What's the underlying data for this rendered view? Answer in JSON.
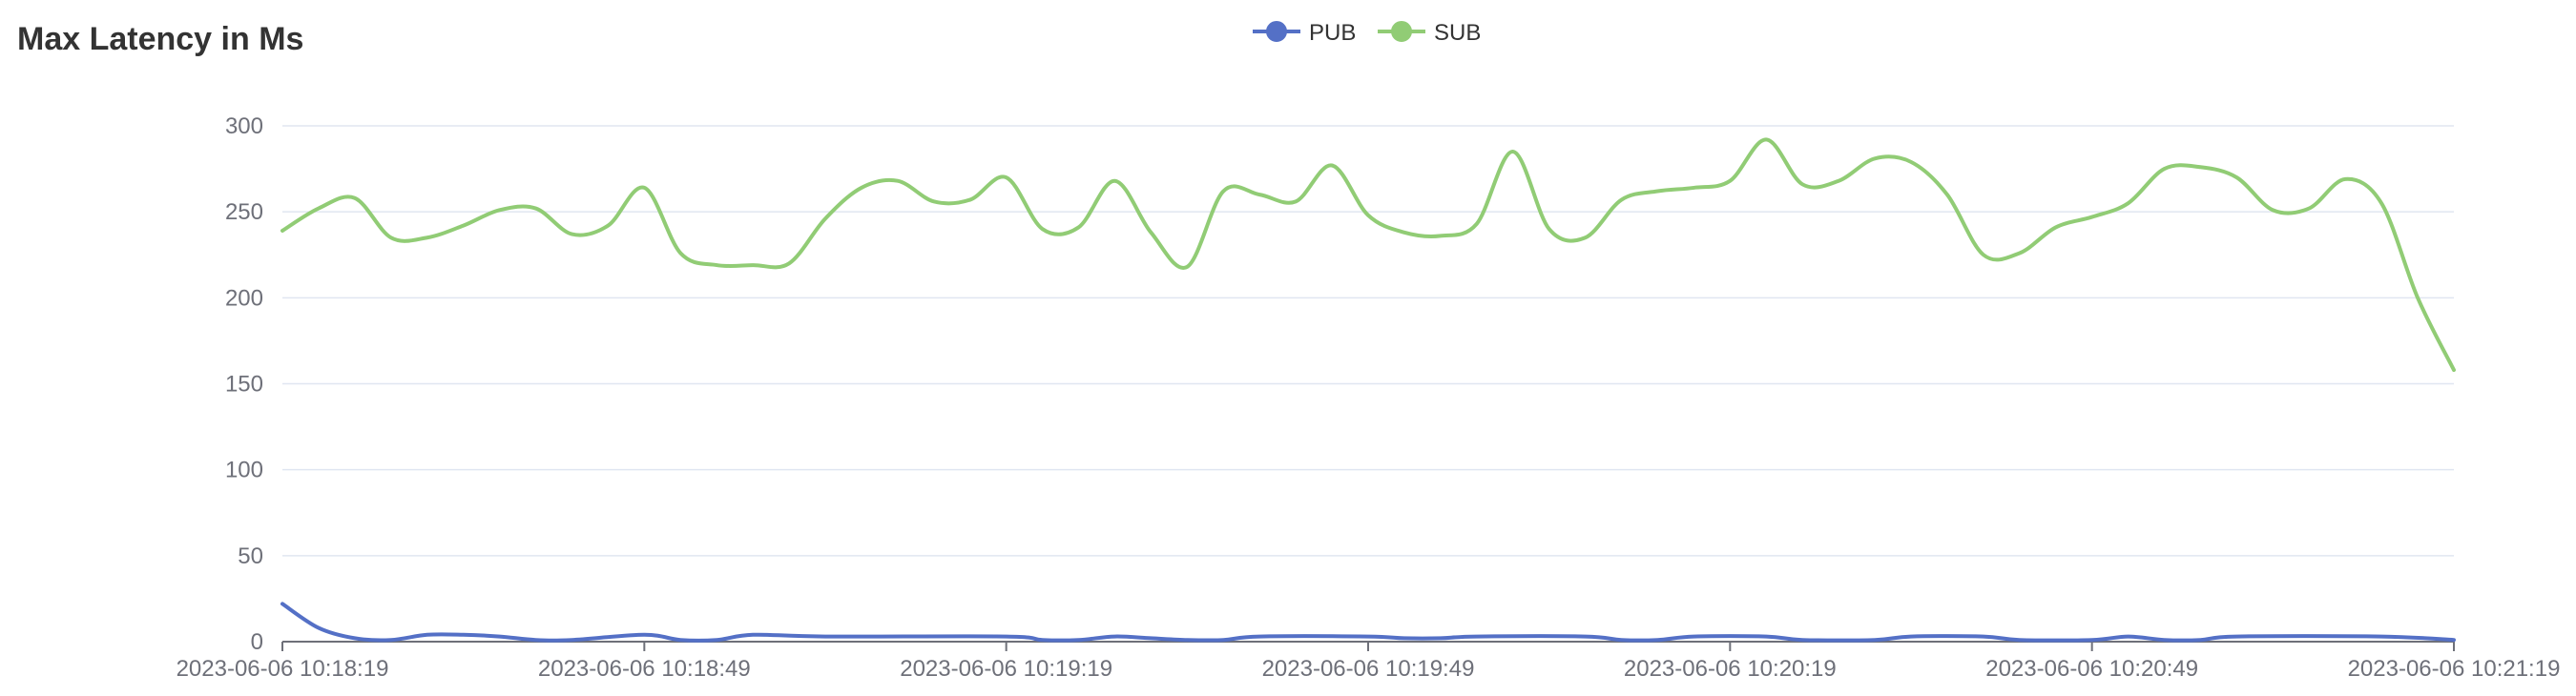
{
  "chart_data": {
    "type": "line",
    "title": "Max Latency in Ms",
    "legend_position": "top-center",
    "grid": true,
    "x_labels": [
      "2023-06-06 10:18:19",
      "2023-06-06 10:18:49",
      "2023-06-06 10:19:19",
      "2023-06-06 10:19:49",
      "2023-06-06 10:20:19",
      "2023-06-06 10:20:49",
      "2023-06-06 10:21:19"
    ],
    "x_range_seconds": [
      0,
      180
    ],
    "ylim": [
      0,
      300
    ],
    "y_ticks": [
      0,
      50,
      100,
      150,
      200,
      250,
      300
    ],
    "series": [
      {
        "name": "PUB",
        "color": "#5470c6",
        "points": [
          [
            0,
            22
          ],
          [
            3,
            8
          ],
          [
            6,
            2
          ],
          [
            9,
            1
          ],
          [
            12,
            4
          ],
          [
            15,
            4
          ],
          [
            18,
            3
          ],
          [
            21,
            1
          ],
          [
            24,
            1
          ],
          [
            30,
            4
          ],
          [
            33,
            1
          ],
          [
            36,
            1
          ],
          [
            39,
            4
          ],
          [
            45,
            3
          ],
          [
            60,
            3
          ],
          [
            63,
            1
          ],
          [
            66,
            1
          ],
          [
            69,
            3
          ],
          [
            72,
            2
          ],
          [
            75,
            1
          ],
          [
            78,
            1
          ],
          [
            81,
            3
          ],
          [
            90,
            3
          ],
          [
            93,
            2
          ],
          [
            96,
            2
          ],
          [
            99,
            3
          ],
          [
            108,
            3
          ],
          [
            111,
            1
          ],
          [
            114,
            1
          ],
          [
            117,
            3
          ],
          [
            123,
            3
          ],
          [
            126,
            1
          ],
          [
            132,
            1
          ],
          [
            135,
            3
          ],
          [
            141,
            3
          ],
          [
            144,
            1
          ],
          [
            150,
            1
          ],
          [
            153,
            3
          ],
          [
            156,
            1
          ],
          [
            159,
            1
          ],
          [
            162,
            3
          ],
          [
            174,
            3
          ],
          [
            180,
            1
          ]
        ]
      },
      {
        "name": "SUB",
        "color": "#91cc75",
        "points": [
          [
            0,
            239
          ],
          [
            3,
            252
          ],
          [
            6,
            258
          ],
          [
            9,
            235
          ],
          [
            12,
            235
          ],
          [
            15,
            242
          ],
          [
            18,
            251
          ],
          [
            21,
            252
          ],
          [
            24,
            237
          ],
          [
            27,
            242
          ],
          [
            30,
            264
          ],
          [
            33,
            226
          ],
          [
            36,
            219
          ],
          [
            39,
            219
          ],
          [
            42,
            220
          ],
          [
            45,
            246
          ],
          [
            48,
            264
          ],
          [
            51,
            268
          ],
          [
            54,
            256
          ],
          [
            57,
            257
          ],
          [
            60,
            270
          ],
          [
            63,
            240
          ],
          [
            66,
            241
          ],
          [
            69,
            268
          ],
          [
            72,
            238
          ],
          [
            75,
            218
          ],
          [
            78,
            262
          ],
          [
            81,
            260
          ],
          [
            84,
            256
          ],
          [
            87,
            277
          ],
          [
            90,
            248
          ],
          [
            93,
            238
          ],
          [
            96,
            236
          ],
          [
            99,
            243
          ],
          [
            102,
            285
          ],
          [
            105,
            240
          ],
          [
            108,
            235
          ],
          [
            111,
            257
          ],
          [
            114,
            262
          ],
          [
            117,
            264
          ],
          [
            120,
            268
          ],
          [
            123,
            292
          ],
          [
            126,
            266
          ],
          [
            129,
            268
          ],
          [
            132,
            281
          ],
          [
            135,
            279
          ],
          [
            138,
            260
          ],
          [
            141,
            225
          ],
          [
            144,
            226
          ],
          [
            147,
            241
          ],
          [
            150,
            247
          ],
          [
            153,
            255
          ],
          [
            156,
            275
          ],
          [
            159,
            276
          ],
          [
            162,
            270
          ],
          [
            165,
            251
          ],
          [
            168,
            252
          ],
          [
            171,
            269
          ],
          [
            174,
            255
          ],
          [
            177,
            200
          ],
          [
            180,
            158
          ]
        ]
      }
    ]
  }
}
